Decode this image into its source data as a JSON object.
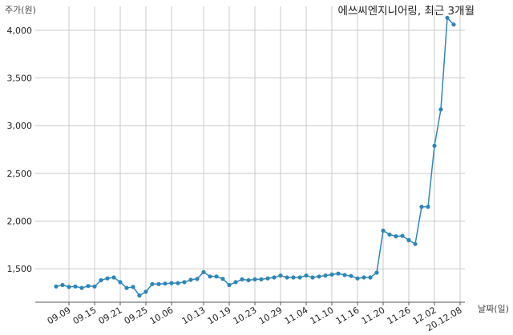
{
  "chart_data": {
    "type": "line",
    "title": "에쓰씨엔지니어링, 최근 3개월",
    "ylabel": "주가(원)",
    "xlabel": "날짜(일)",
    "ylim": [
      1150,
      4250
    ],
    "y_ticks": [
      1500,
      2000,
      2500,
      3000,
      3500,
      4000
    ],
    "y_tick_labels": [
      "1,500",
      "2,000",
      "2,500",
      "3,000",
      "3,500",
      "4,000"
    ],
    "grid": true,
    "x_tick_labels": [
      "09.09",
      "09.15",
      "09.21",
      "09.25",
      "10.06",
      "10.13",
      "10.19",
      "10.23",
      "10.29",
      "11.04",
      "11.10",
      "11.16",
      "11.20",
      "11.26",
      "12.02",
      "20.12.08"
    ],
    "x_tick_index": [
      2,
      6,
      10,
      14,
      18,
      23,
      27,
      31,
      35,
      39,
      43,
      47,
      51,
      55,
      59,
      63
    ],
    "color": "#2e86b6",
    "series": [
      {
        "values": [
          1315,
          1330,
          1310,
          1315,
          1300,
          1320,
          1315,
          1380,
          1400,
          1410,
          1360,
          1300,
          1310,
          1220,
          1260,
          1340,
          1340,
          1345,
          1350,
          1350,
          1360,
          1385,
          1395,
          1465,
          1420,
          1420,
          1395,
          1330,
          1360,
          1390,
          1380,
          1390,
          1390,
          1400,
          1410,
          1430,
          1410,
          1410,
          1410,
          1430,
          1410,
          1420,
          1430,
          1440,
          1450,
          1435,
          1425,
          1400,
          1410,
          1410,
          1460,
          1900,
          1860,
          1840,
          1845,
          1800,
          1760,
          2150,
          2150,
          2790,
          3170,
          4130,
          4060
        ]
      }
    ]
  }
}
